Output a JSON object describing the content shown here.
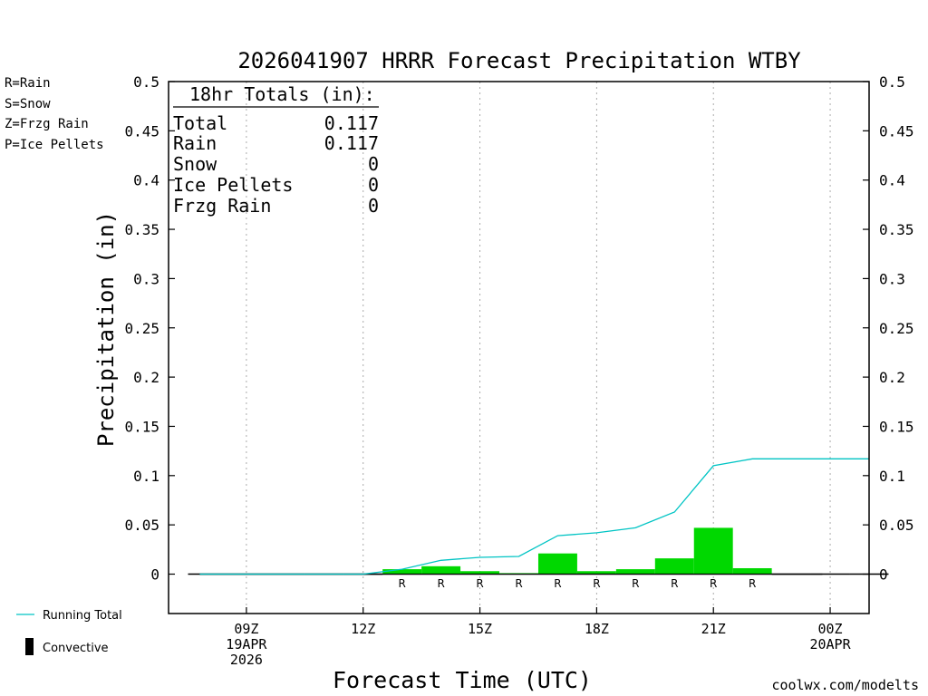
{
  "chart_data": {
    "type": "bar",
    "title": "2026041907 HRRR Forecast Precipitation WTBY",
    "xlabel": "Forecast Time (UTC)",
    "ylabel": "Precipitation (in)",
    "ylim": [
      -0.04,
      0.5
    ],
    "y_ticks": [
      0,
      0.05,
      0.1,
      0.15,
      0.2,
      0.25,
      0.3,
      0.35,
      0.4,
      0.45,
      0.5
    ],
    "y_tick_labels": [
      "0",
      "0.05",
      "0.1",
      "0.15",
      "0.2",
      "0.25",
      "0.3",
      "0.35",
      "0.4",
      "0.45",
      "0.5"
    ],
    "xlim_hours": [
      7.0,
      25.0
    ],
    "x_ticks": [
      {
        "hour": 9,
        "lines": [
          "09Z",
          "19APR",
          "2026"
        ]
      },
      {
        "hour": 12,
        "lines": [
          "12Z"
        ]
      },
      {
        "hour": 15,
        "lines": [
          "15Z"
        ]
      },
      {
        "hour": 18,
        "lines": [
          "18Z"
        ]
      },
      {
        "hour": 21,
        "lines": [
          "21Z"
        ]
      },
      {
        "hour": 24,
        "lines": [
          "00Z",
          "20APR"
        ]
      }
    ],
    "grid": "vertical dotted at tick hours",
    "hourly_precip": {
      "hours": [
        8,
        9,
        10,
        11,
        12,
        13,
        14,
        15,
        16,
        17,
        18,
        19,
        20,
        21,
        22,
        23,
        24,
        25
      ],
      "values": [
        0,
        0,
        0,
        0,
        0,
        0.005,
        0.008,
        0.003,
        0.001,
        0.021,
        0.003,
        0.005,
        0.016,
        0.047,
        0.006,
        0,
        0,
        0
      ],
      "types": [
        "",
        "",
        "",
        "",
        "",
        "R",
        "R",
        "R",
        "R",
        "R",
        "R",
        "R",
        "R",
        "R",
        "R",
        "",
        "",
        ""
      ],
      "color": "#00d800"
    },
    "running_total": {
      "name": "Running Total",
      "x_hours": [
        7.8,
        12.0,
        13.0,
        14.0,
        15.0,
        16.0,
        17.0,
        18.0,
        19.0,
        20.0,
        21.0,
        22.0,
        23.0,
        24.0,
        25.0
      ],
      "values": [
        0,
        0,
        0.005,
        0.014,
        0.017,
        0.018,
        0.039,
        0.042,
        0.047,
        0.063,
        0.11,
        0.117,
        0.117,
        0.117,
        0.117
      ],
      "color": "#00c4c4"
    },
    "totals_box": {
      "heading": "18hr Totals (in):",
      "rows": [
        {
          "label": "Total",
          "value": "0.117"
        },
        {
          "label": "Rain",
          "value": "0.117"
        },
        {
          "label": "Snow",
          "value": "0"
        },
        {
          "label": "Ice Pellets",
          "value": "0"
        },
        {
          "label": "Frzg Rain",
          "value": "0"
        }
      ]
    },
    "type_legend": [
      {
        "text": "R=Rain",
        "color": "#22cc22"
      },
      {
        "text": "S=Snow",
        "color": "#3344ee"
      },
      {
        "text": "Z=Frzg Rain",
        "color": "#ee8833"
      },
      {
        "text": "P=Ice Pellets",
        "color": "#ee1199"
      }
    ],
    "bottom_legend": [
      {
        "text": "Running Total",
        "color": "#00c4c4"
      },
      {
        "text": "Convective",
        "color": "#000000"
      }
    ],
    "credit": "coolwx.com/modelts"
  }
}
